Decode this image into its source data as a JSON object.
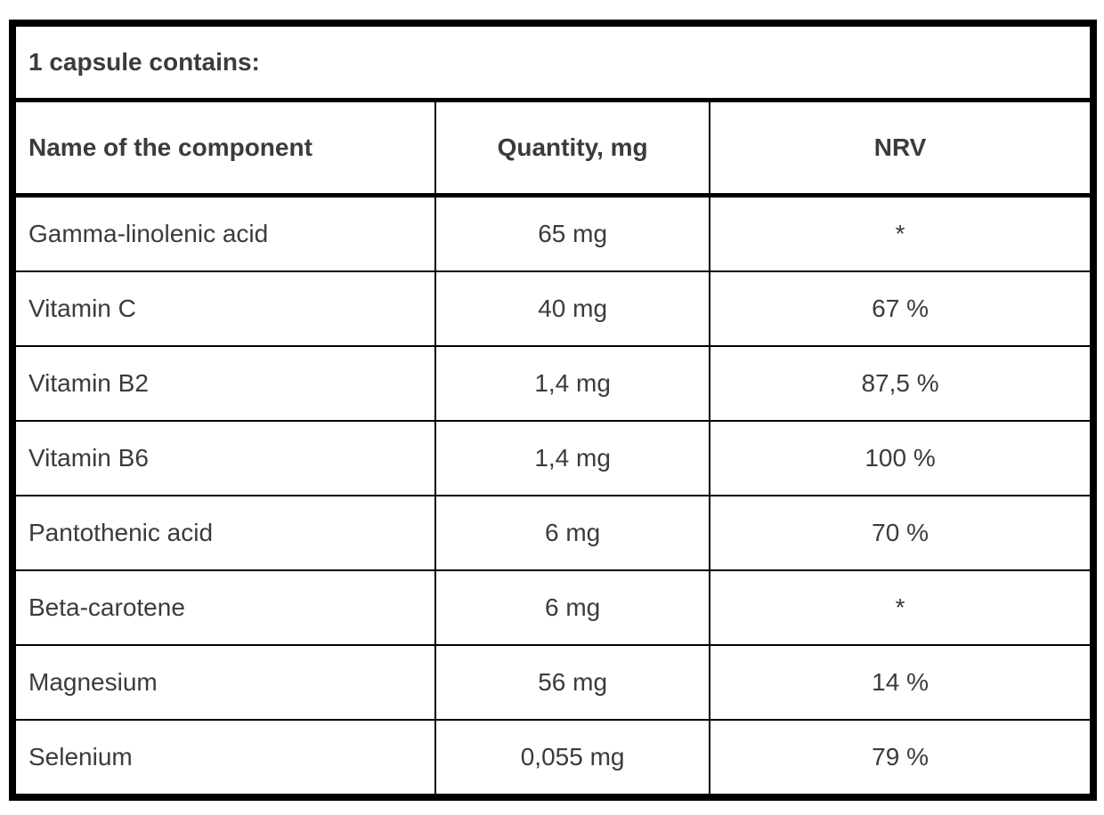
{
  "table": {
    "caption": "1 capsule contains:",
    "columns": [
      "Name of the component",
      "Quantity, mg",
      "NRV"
    ],
    "rows": [
      {
        "name": "Gamma-linolenic acid",
        "quantity": "65 mg",
        "nrv": "*"
      },
      {
        "name": "Vitamin C",
        "quantity": "40 mg",
        "nrv": "67 %"
      },
      {
        "name": "Vitamin B2",
        "quantity": "1,4 mg",
        "nrv": "87,5 %"
      },
      {
        "name": "Vitamin B6",
        "quantity": "1,4 mg",
        "nrv": "100 %"
      },
      {
        "name": "Pantothenic acid",
        "quantity": "6 mg",
        "nrv": "70 %"
      },
      {
        "name": "Beta-carotene",
        "quantity": "6 mg",
        "nrv": "*"
      },
      {
        "name": "Magnesium",
        "quantity": "56 mg",
        "nrv": "14 %"
      },
      {
        "name": "Selenium",
        "quantity": "0,055 mg",
        "nrv": "79 %"
      }
    ],
    "colors": {
      "text": "#3b3b3b",
      "border": "#000000",
      "background": "#ffffff"
    }
  }
}
